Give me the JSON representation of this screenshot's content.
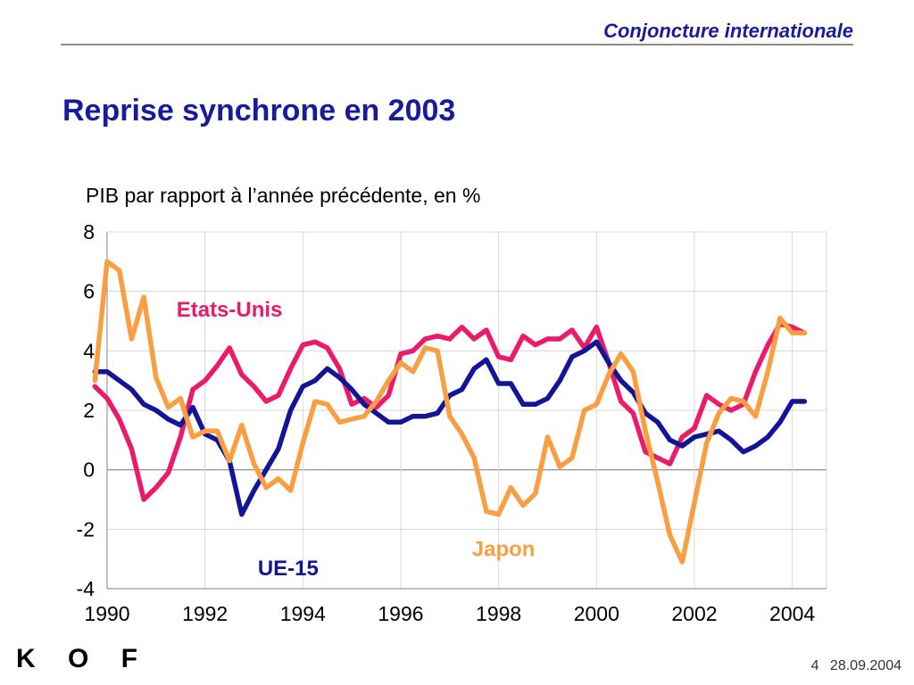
{
  "header": {
    "title": "Conjoncture internationale"
  },
  "slide": {
    "title": "Reprise synchrone en 2003"
  },
  "footer": {
    "page": "4",
    "date": "28.09.2004",
    "logo": "K O F"
  },
  "colors": {
    "etats_unis": "#ec1a6a",
    "ue15": "#141496",
    "japon": "#f99f42",
    "title": "#1a1a9c"
  },
  "chart_data": {
    "type": "line",
    "title": "PIB par rapport à l’année précédente, en %",
    "xlabel": "",
    "ylabel": "",
    "xlim": [
      1990,
      2004.7
    ],
    "ylim": [
      -4,
      8
    ],
    "xticks": [
      1990,
      1992,
      1994,
      1996,
      1998,
      2000,
      2002,
      2004
    ],
    "yticks": [
      -4,
      -2,
      0,
      2,
      4,
      6,
      8
    ],
    "grid": true,
    "annotations": [
      {
        "text": "Etats-Unis",
        "series": "Etats-Unis"
      },
      {
        "text": "UE-15",
        "series": "UE-15"
      },
      {
        "text": "Japon",
        "series": "Japon"
      }
    ],
    "series": [
      {
        "name": "Etats-Unis",
        "color": "#ec1a6a",
        "x": [
          1989.75,
          1990.0,
          1990.25,
          1990.5,
          1990.75,
          1991.0,
          1991.25,
          1991.5,
          1991.75,
          1992.0,
          1992.25,
          1992.5,
          1992.75,
          1993.0,
          1993.25,
          1993.5,
          1993.75,
          1994.0,
          1994.25,
          1994.5,
          1994.75,
          1995.0,
          1995.25,
          1995.5,
          1995.75,
          1996.0,
          1996.25,
          1996.5,
          1996.75,
          1997.0,
          1997.25,
          1997.5,
          1997.75,
          1998.0,
          1998.25,
          1998.5,
          1998.75,
          1999.0,
          1999.25,
          1999.5,
          1999.75,
          2000.0,
          2000.25,
          2000.5,
          2000.75,
          2001.0,
          2001.25,
          2001.5,
          2001.75,
          2002.0,
          2002.25,
          2002.5,
          2002.75,
          2003.0,
          2003.25,
          2003.5,
          2003.75,
          2004.0,
          2004.25
        ],
        "values": [
          2.8,
          2.4,
          1.7,
          0.7,
          -1.0,
          -0.6,
          -0.1,
          1.1,
          2.7,
          3.0,
          3.5,
          4.1,
          3.2,
          2.8,
          2.3,
          2.5,
          3.4,
          4.2,
          4.3,
          4.1,
          3.4,
          2.2,
          2.4,
          2.1,
          2.5,
          3.9,
          4.0,
          4.4,
          4.5,
          4.4,
          4.8,
          4.4,
          4.7,
          3.8,
          3.7,
          4.5,
          4.2,
          4.4,
          4.4,
          4.7,
          4.1,
          4.8,
          3.6,
          2.3,
          1.9,
          0.6,
          0.4,
          0.2,
          1.1,
          1.4,
          2.5,
          2.2,
          2.0,
          2.2,
          3.3,
          4.2,
          4.9,
          4.8,
          4.6
        ]
      },
      {
        "name": "UE-15",
        "color": "#141496",
        "x": [
          1989.75,
          1990.0,
          1990.25,
          1990.5,
          1990.75,
          1991.0,
          1991.25,
          1991.5,
          1991.75,
          1992.0,
          1992.25,
          1992.5,
          1992.75,
          1993.0,
          1993.25,
          1993.5,
          1993.75,
          1994.0,
          1994.25,
          1994.5,
          1994.75,
          1995.0,
          1995.25,
          1995.5,
          1995.75,
          1996.0,
          1996.25,
          1996.5,
          1996.75,
          1997.0,
          1997.25,
          1997.5,
          1997.75,
          1998.0,
          1998.25,
          1998.5,
          1998.75,
          1999.0,
          1999.25,
          1999.5,
          1999.75,
          2000.0,
          2000.25,
          2000.5,
          2000.75,
          2001.0,
          2001.25,
          2001.5,
          2001.75,
          2002.0,
          2002.25,
          2002.5,
          2002.75,
          2003.0,
          2003.25,
          2003.5,
          2003.75,
          2004.0,
          2004.25
        ],
        "values": [
          3.3,
          3.3,
          3.0,
          2.7,
          2.2,
          2.0,
          1.7,
          1.5,
          2.1,
          1.2,
          1.0,
          0.3,
          -1.5,
          -0.7,
          0.0,
          0.7,
          2.0,
          2.8,
          3.0,
          3.4,
          3.1,
          2.7,
          2.2,
          1.9,
          1.6,
          1.6,
          1.8,
          1.8,
          1.9,
          2.5,
          2.7,
          3.4,
          3.7,
          2.9,
          2.9,
          2.2,
          2.2,
          2.4,
          3.0,
          3.8,
          4.0,
          4.3,
          3.6,
          3.0,
          2.6,
          1.9,
          1.6,
          1.0,
          0.8,
          1.1,
          1.2,
          1.3,
          1.0,
          0.6,
          0.8,
          1.1,
          1.6,
          2.3,
          2.3
        ]
      },
      {
        "name": "Japon",
        "color": "#f99f42",
        "x": [
          1989.75,
          1990.0,
          1990.25,
          1990.5,
          1990.75,
          1991.0,
          1991.25,
          1991.5,
          1991.75,
          1992.0,
          1992.25,
          1992.5,
          1992.75,
          1993.0,
          1993.25,
          1993.5,
          1993.75,
          1994.0,
          1994.25,
          1994.5,
          1994.75,
          1995.0,
          1995.25,
          1995.5,
          1995.75,
          1996.0,
          1996.25,
          1996.5,
          1996.75,
          1997.0,
          1997.25,
          1997.5,
          1997.75,
          1998.0,
          1998.25,
          1998.5,
          1998.75,
          1999.0,
          1999.25,
          1999.5,
          1999.75,
          2000.0,
          2000.25,
          2000.5,
          2000.75,
          2001.0,
          2001.25,
          2001.5,
          2001.75,
          2002.0,
          2002.25,
          2002.5,
          2002.75,
          2003.0,
          2003.25,
          2003.5,
          2003.75,
          2004.0,
          2004.25
        ],
        "values": [
          3.0,
          7.0,
          6.7,
          4.4,
          5.8,
          3.1,
          2.1,
          2.4,
          1.1,
          1.3,
          1.3,
          0.3,
          1.5,
          0.2,
          -0.6,
          -0.3,
          -0.7,
          0.9,
          2.3,
          2.2,
          1.6,
          1.7,
          1.8,
          2.3,
          3.0,
          3.6,
          3.3,
          4.1,
          4.0,
          1.8,
          1.2,
          0.4,
          -1.4,
          -1.5,
          -0.6,
          -1.2,
          -0.8,
          1.1,
          0.1,
          0.4,
          2.0,
          2.2,
          3.2,
          3.9,
          3.3,
          1.3,
          -0.4,
          -2.2,
          -3.1,
          -1.1,
          0.9,
          1.9,
          2.4,
          2.3,
          1.8,
          3.3,
          5.1,
          4.6,
          4.6
        ]
      }
    ]
  }
}
